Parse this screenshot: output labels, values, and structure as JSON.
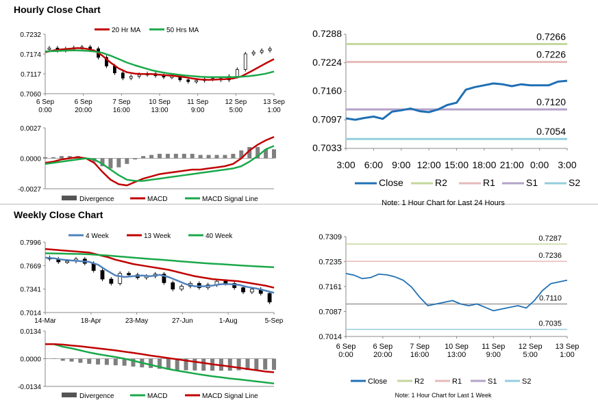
{
  "sections": {
    "hourly_title": "Hourly Close Chart",
    "weekly_title": "Weekly Close Chart"
  },
  "colors": {
    "ma_red": "#c00000",
    "ma_green": "#1aa84a",
    "ma_blue": "#4f81bd",
    "close_blue": "#1f6fb4",
    "r2": "#c3d69b",
    "r1": "#e6b9b8",
    "s1": "#b3a2c7",
    "s2": "#93cddd",
    "hist": "#7f7f7f",
    "candle": "#000000"
  },
  "chart_data": [
    {
      "id": "hourly_price",
      "type": "line",
      "title": "",
      "ylim": [
        0.706,
        0.7232
      ],
      "y_ticks": [
        "0.7232",
        "0.7174",
        "0.7117",
        "0.7060"
      ],
      "x_ticks": [
        {
          "top": "6 Sep",
          "bottom": "0:00"
        },
        {
          "top": "6 Sep",
          "bottom": "20:00"
        },
        {
          "top": "7 Sep",
          "bottom": "16:00"
        },
        {
          "top": "10 Sep",
          "bottom": "13:00"
        },
        {
          "top": "11 Sep",
          "bottom": "9:00"
        },
        {
          "top": "12 Sep",
          "bottom": "5:00"
        },
        {
          "top": "13 Sep",
          "bottom": "1:00"
        }
      ],
      "legend": [
        "20 Hr MA",
        "50 Hrs MA"
      ],
      "series": [
        {
          "name": "Close",
          "values": [
            0.7188,
            0.7192,
            0.7185,
            0.719,
            0.7193,
            0.7195,
            0.719,
            0.7165,
            0.714,
            0.712,
            0.7105,
            0.711,
            0.7115,
            0.7118,
            0.7112,
            0.7108,
            0.711,
            0.71,
            0.7095,
            0.7098,
            0.7102,
            0.7104,
            0.71,
            0.711,
            0.713,
            0.7175,
            0.718,
            0.7185,
            0.719
          ]
        },
        {
          "name": "20 Hr MA",
          "values": [
            0.718,
            0.7185,
            0.7188,
            0.719,
            0.7192,
            0.719,
            0.7185,
            0.717,
            0.715,
            0.7133,
            0.7122,
            0.7118,
            0.7117,
            0.7117,
            0.7115,
            0.7113,
            0.7111,
            0.7108,
            0.7104,
            0.7101,
            0.71,
            0.7101,
            0.7102,
            0.7104,
            0.711,
            0.7122,
            0.7135,
            0.7148,
            0.716
          ]
        },
        {
          "name": "50 Hrs MA",
          "values": [
            0.7182,
            0.7183,
            0.7184,
            0.7185,
            0.7185,
            0.7184,
            0.7182,
            0.7178,
            0.717,
            0.716,
            0.715,
            0.7142,
            0.7135,
            0.7128,
            0.7123,
            0.7119,
            0.7116,
            0.7113,
            0.7111,
            0.7109,
            0.7108,
            0.7108,
            0.7108,
            0.7108,
            0.7109,
            0.7111,
            0.7114,
            0.7118,
            0.7124
          ]
        }
      ]
    },
    {
      "id": "hourly_macd",
      "type": "line",
      "title": "",
      "ylim": [
        -0.0027,
        0.0027
      ],
      "y_ticks": [
        "0.0027",
        "0.0000",
        "-0.0027"
      ],
      "legend": [
        "Divergence",
        "MACD",
        "MACD Signal Line"
      ],
      "series": [
        {
          "name": "MACD",
          "values": [
            -0.0004,
            -0.0003,
            -0.0001,
            0.0,
            0.0001,
            0.0,
            -0.0004,
            -0.0012,
            -0.0019,
            -0.0023,
            -0.0024,
            -0.0021,
            -0.0018,
            -0.0016,
            -0.0014,
            -0.0013,
            -0.0012,
            -0.0011,
            -0.001,
            -0.001,
            -0.0009,
            -0.0008,
            -0.0007,
            -0.0005,
            0.0,
            0.0007,
            0.0012,
            0.0016,
            0.0019
          ]
        },
        {
          "name": "MACD Signal Line",
          "values": [
            -0.0005,
            -0.0004,
            -0.0003,
            -0.0002,
            -0.0001,
            0.0,
            -0.0001,
            -0.0005,
            -0.001,
            -0.0015,
            -0.0019,
            -0.002,
            -0.002,
            -0.0019,
            -0.0018,
            -0.0017,
            -0.0016,
            -0.0015,
            -0.0014,
            -0.0013,
            -0.0012,
            -0.0011,
            -0.001,
            -0.0009,
            -0.0007,
            -0.0003,
            0.0002,
            0.0008,
            0.0011
          ]
        },
        {
          "name": "Divergence",
          "values": [
            0.0001,
            0.0001,
            0.0002,
            0.0002,
            0.0002,
            0.0,
            -0.0003,
            -0.0007,
            -0.0009,
            -0.0008,
            -0.0005,
            -0.0001,
            0.0002,
            0.0003,
            0.0004,
            0.0004,
            0.0004,
            0.0004,
            0.0004,
            0.0003,
            0.0003,
            0.0003,
            0.0003,
            0.0004,
            0.0007,
            0.001,
            0.001,
            0.0008,
            0.0008
          ]
        }
      ]
    },
    {
      "id": "hourly_24h",
      "type": "line",
      "title": "",
      "ylim": [
        0.7033,
        0.7288
      ],
      "y_ticks": [
        "0.7288",
        "0.7224",
        "0.7160",
        "0.7097",
        "0.7033"
      ],
      "x_ticks": [
        "3:00",
        "6:00",
        "9:00",
        "12:00",
        "15:00",
        "18:00",
        "21:00",
        "0:00",
        "3:00"
      ],
      "levels": [
        {
          "name": "R2",
          "value": 0.7266,
          "label": "0.7266"
        },
        {
          "name": "R1",
          "value": 0.7226,
          "label": "0.7226"
        },
        {
          "name": "S1",
          "value": 0.712,
          "label": "0.7120"
        },
        {
          "name": "S2",
          "value": 0.7054,
          "label": "0.7054"
        }
      ],
      "legend": [
        "Close",
        "R2",
        "R1",
        "S1",
        "S2"
      ],
      "note": "Note: 1 Hour Chart for Last 24 Hours",
      "series": [
        {
          "name": "Close",
          "values": [
            0.71,
            0.7097,
            0.7101,
            0.7104,
            0.7099,
            0.7115,
            0.7118,
            0.7122,
            0.7116,
            0.7114,
            0.712,
            0.713,
            0.7135,
            0.7164,
            0.717,
            0.7174,
            0.7178,
            0.7176,
            0.7172,
            0.7176,
            0.7174,
            0.7174,
            0.7174,
            0.7182,
            0.7184
          ]
        }
      ]
    },
    {
      "id": "weekly_price",
      "type": "line",
      "title": "",
      "ylim": [
        0.7014,
        0.7996
      ],
      "y_ticks": [
        "0.7996",
        "0.7669",
        "0.7341",
        "0.7014"
      ],
      "x_ticks": [
        "14-Mar",
        "18-Apr",
        "23-May",
        "27-Jun",
        "1-Aug",
        "5-Sep"
      ],
      "legend": [
        "4 Week",
        "13 Week",
        "40 Week"
      ],
      "series": [
        {
          "name": "Close",
          "values": [
            0.778,
            0.776,
            0.772,
            0.773,
            0.776,
            0.77,
            0.76,
            0.748,
            0.742,
            0.756,
            0.754,
            0.75,
            0.752,
            0.755,
            0.743,
            0.734,
            0.738,
            0.742,
            0.736,
            0.74,
            0.745,
            0.742,
            0.736,
            0.73,
            0.734,
            0.728,
            0.716
          ]
        },
        {
          "name": "4 Week",
          "values": [
            0.778,
            0.777,
            0.775,
            0.774,
            0.773,
            0.772,
            0.768,
            0.76,
            0.753,
            0.751,
            0.752,
            0.753,
            0.752,
            0.754,
            0.751,
            0.746,
            0.741,
            0.738,
            0.738,
            0.739,
            0.741,
            0.741,
            0.74,
            0.737,
            0.735,
            0.732,
            0.729
          ]
        },
        {
          "name": "13 Week",
          "values": [
            0.79,
            0.789,
            0.788,
            0.787,
            0.786,
            0.785,
            0.782,
            0.779,
            0.775,
            0.772,
            0.769,
            0.767,
            0.765,
            0.763,
            0.761,
            0.758,
            0.755,
            0.752,
            0.75,
            0.748,
            0.747,
            0.746,
            0.745,
            0.743,
            0.741,
            0.739,
            0.736
          ]
        },
        {
          "name": "40 Week",
          "values": [
            0.784,
            0.7838,
            0.7835,
            0.7832,
            0.783,
            0.7825,
            0.7818,
            0.781,
            0.78,
            0.779,
            0.778,
            0.777,
            0.776,
            0.7752,
            0.7742,
            0.7732,
            0.7722,
            0.7712,
            0.7702,
            0.7695,
            0.7688,
            0.768,
            0.7672,
            0.7665,
            0.7658,
            0.7652,
            0.7645
          ]
        }
      ]
    },
    {
      "id": "weekly_macd",
      "type": "line",
      "title": "",
      "ylim": [
        -0.0134,
        0.0134
      ],
      "y_ticks": [
        "0.0134",
        "0.0000",
        "-0.0134"
      ],
      "legend": [
        "Divergence",
        "MACD",
        "MACD Signal Line"
      ],
      "series": [
        {
          "name": "MACD",
          "values": [
            0.007,
            0.007,
            0.0058,
            0.005,
            0.004,
            0.003,
            0.0022,
            0.0015,
            0.0008,
            0.0,
            -0.001,
            -0.002,
            -0.003,
            -0.004,
            -0.005,
            -0.0058,
            -0.0065,
            -0.0072,
            -0.0079,
            -0.0085,
            -0.009,
            -0.0096,
            -0.01,
            -0.0105,
            -0.011,
            -0.0115,
            -0.012
          ]
        },
        {
          "name": "MACD Signal Line",
          "values": [
            0.007,
            0.007,
            0.0068,
            0.0064,
            0.006,
            0.0055,
            0.005,
            0.0045,
            0.004,
            0.0034,
            0.0028,
            0.0022,
            0.0015,
            0.0009,
            0.0003,
            -0.0003,
            -0.0009,
            -0.0015,
            -0.0021,
            -0.0027,
            -0.0032,
            -0.0038,
            -0.0044,
            -0.005,
            -0.0056,
            -0.0062,
            -0.0066
          ]
        },
        {
          "name": "Divergence",
          "values": [
            0.0,
            0.0,
            -0.001,
            -0.0014,
            -0.002,
            -0.0025,
            -0.0028,
            -0.003,
            -0.0032,
            -0.0034,
            -0.0038,
            -0.0042,
            -0.0045,
            -0.0049,
            -0.0053,
            -0.0055,
            -0.0056,
            -0.0057,
            -0.0058,
            -0.0058,
            -0.0058,
            -0.0058,
            -0.0056,
            -0.0055,
            -0.0054,
            -0.0053,
            -0.0054
          ]
        }
      ]
    },
    {
      "id": "weekly_1w",
      "type": "line",
      "title": "",
      "ylim": [
        0.7014,
        0.7309
      ],
      "y_ticks": [
        "0.7309",
        "0.7235",
        "0.7161",
        "0.7087",
        "0.7014"
      ],
      "x_ticks": [
        {
          "top": "6 Sep",
          "bottom": "0:00"
        },
        {
          "top": "6 Sep",
          "bottom": "20:00"
        },
        {
          "top": "7 Sep",
          "bottom": "16:00"
        },
        {
          "top": "10 Sep",
          "bottom": "13:00"
        },
        {
          "top": "11 Sep",
          "bottom": "9:00"
        },
        {
          "top": "12 Sep",
          "bottom": "5:00"
        },
        {
          "top": "13 Sep",
          "bottom": "1:00"
        }
      ],
      "levels": [
        {
          "name": "R2",
          "value": 0.7287,
          "label": "0.7287"
        },
        {
          "name": "R1",
          "value": 0.7236,
          "label": "0.7236"
        },
        {
          "name": "S1",
          "value": 0.711,
          "label": "0.7110"
        },
        {
          "name": "S2",
          "value": 0.7035,
          "label": "0.7035"
        }
      ],
      "legend": [
        "Close",
        "R2",
        "R1",
        "S1",
        "S2"
      ],
      "note": "Note: 1 Hour Chart for Last 1 Week",
      "series": [
        {
          "name": "Close",
          "values": [
            0.72,
            0.7195,
            0.7185,
            0.7188,
            0.7198,
            0.7196,
            0.719,
            0.718,
            0.716,
            0.713,
            0.7105,
            0.711,
            0.7115,
            0.712,
            0.711,
            0.7105,
            0.711,
            0.71,
            0.709,
            0.7095,
            0.71,
            0.7105,
            0.7098,
            0.712,
            0.715,
            0.717,
            0.7175,
            0.718
          ]
        }
      ]
    }
  ]
}
